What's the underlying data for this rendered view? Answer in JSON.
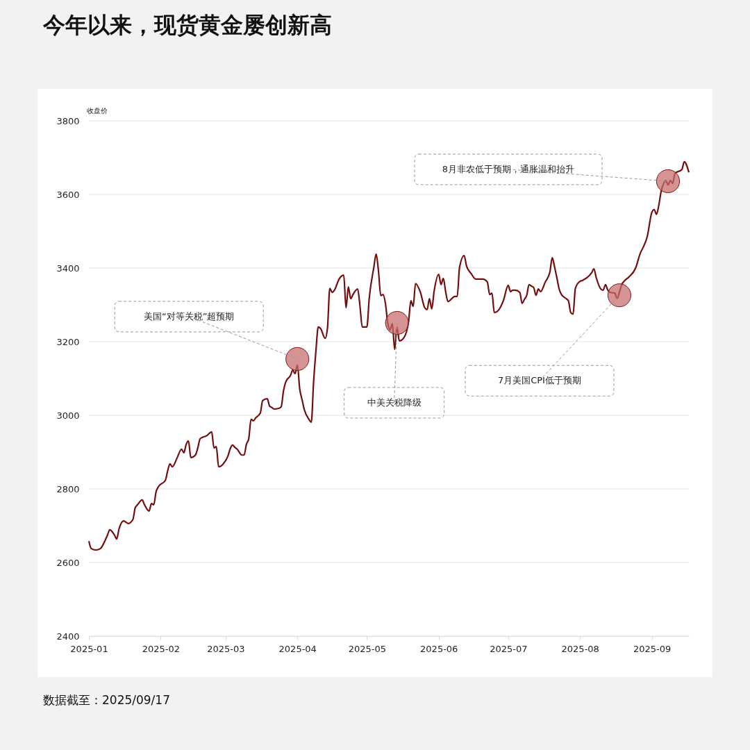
{
  "chart_data": {
    "type": "line",
    "title": "今年以来，现货黄金屡创新高",
    "ylabel": "收盘价",
    "x": [
      "2025-01-01",
      "2025-01-02",
      "2025-01-04",
      "2025-01-06",
      "2025-01-08",
      "2025-01-09",
      "2025-01-10",
      "2025-01-12",
      "2025-01-13",
      "2025-01-14",
      "2025-01-16",
      "2025-01-18",
      "2025-01-20",
      "2025-01-21",
      "2025-01-22",
      "2025-01-24",
      "2025-01-25",
      "2025-01-27",
      "2025-01-28",
      "2025-01-29",
      "2025-01-30",
      "2025-01-31",
      "2025-02-03",
      "2025-02-04",
      "2025-02-05",
      "2025-02-06",
      "2025-02-08",
      "2025-02-10",
      "2025-02-11",
      "2025-02-12",
      "2025-02-13",
      "2025-02-14",
      "2025-02-16",
      "2025-02-17",
      "2025-02-18",
      "2025-02-19",
      "2025-02-21",
      "2025-02-22",
      "2025-02-23",
      "2025-02-24",
      "2025-02-25",
      "2025-02-26",
      "2025-02-28",
      "2025-03-02",
      "2025-03-03",
      "2025-03-04",
      "2025-03-05",
      "2025-03-06",
      "2025-03-08",
      "2025-03-09",
      "2025-03-10",
      "2025-03-11",
      "2025-03-12",
      "2025-03-13",
      "2025-03-14",
      "2025-03-16",
      "2025-03-17",
      "2025-03-19",
      "2025-03-20",
      "2025-03-21",
      "2025-03-22",
      "2025-03-24",
      "2025-03-25",
      "2025-03-26",
      "2025-03-27",
      "2025-03-29",
      "2025-03-30",
      "2025-03-31",
      "2025-04-01",
      "2025-04-02",
      "2025-04-03",
      "2025-04-04",
      "2025-04-06",
      "2025-04-07",
      "2025-04-08",
      "2025-04-09",
      "2025-04-10",
      "2025-04-11",
      "2025-04-13",
      "2025-04-14",
      "2025-04-15",
      "2025-04-16",
      "2025-04-17",
      "2025-04-19",
      "2025-04-21",
      "2025-04-22",
      "2025-04-23",
      "2025-04-24",
      "2025-04-25",
      "2025-04-27",
      "2025-04-28",
      "2025-04-29",
      "2025-05-01",
      "2025-05-02",
      "2025-05-04",
      "2025-05-05",
      "2025-05-06",
      "2025-05-07",
      "2025-05-08",
      "2025-05-09",
      "2025-05-10",
      "2025-05-11",
      "2025-05-12",
      "2025-05-13",
      "2025-05-14",
      "2025-05-15",
      "2025-05-17",
      "2025-05-19",
      "2025-05-20",
      "2025-05-21",
      "2025-05-22",
      "2025-05-24",
      "2025-05-26",
      "2025-05-27",
      "2025-05-28",
      "2025-05-29",
      "2025-05-30",
      "2025-06-01",
      "2025-06-02",
      "2025-06-03",
      "2025-06-04",
      "2025-06-05",
      "2025-06-08",
      "2025-06-09",
      "2025-06-10",
      "2025-06-12",
      "2025-06-13",
      "2025-06-15",
      "2025-06-17",
      "2025-06-18",
      "2025-06-20",
      "2025-06-22",
      "2025-06-23",
      "2025-06-24",
      "2025-06-25",
      "2025-06-27",
      "2025-06-29",
      "2025-07-01",
      "2025-07-02",
      "2025-07-03",
      "2025-07-04",
      "2025-07-06",
      "2025-07-07",
      "2025-07-08",
      "2025-07-09",
      "2025-07-10",
      "2025-07-11",
      "2025-07-12",
      "2025-07-13",
      "2025-07-14",
      "2025-07-15",
      "2025-07-17",
      "2025-07-19",
      "2025-07-20",
      "2025-07-21",
      "2025-07-22",
      "2025-07-23",
      "2025-07-24",
      "2025-07-26",
      "2025-07-27",
      "2025-07-28",
      "2025-07-29",
      "2025-07-30",
      "2025-08-01",
      "2025-08-02",
      "2025-08-03",
      "2025-08-04",
      "2025-08-06",
      "2025-08-07",
      "2025-08-08",
      "2025-08-10",
      "2025-08-11",
      "2025-08-12",
      "2025-08-13",
      "2025-08-14",
      "2025-08-16",
      "2025-08-17",
      "2025-08-18",
      "2025-08-19",
      "2025-08-20",
      "2025-08-22",
      "2025-08-25",
      "2025-08-27",
      "2025-08-28",
      "2025-08-30",
      "2025-09-01",
      "2025-09-02",
      "2025-09-03",
      "2025-09-04",
      "2025-09-05",
      "2025-09-06",
      "2025-09-07",
      "2025-09-08",
      "2025-09-09",
      "2025-09-10",
      "2025-09-11",
      "2025-09-14",
      "2025-09-15",
      "2025-09-17"
    ],
    "series": [
      {
        "color": "#740d0d",
        "values": [
          2658,
          2638,
          2634,
          2638,
          2660,
          2674,
          2689,
          2675,
          2664,
          2691,
          2713,
          2706,
          2717,
          2749,
          2757,
          2770,
          2757,
          2740,
          2760,
          2757,
          2792,
          2806,
          2823,
          2849,
          2868,
          2860,
          2883,
          2908,
          2898,
          2921,
          2930,
          2885,
          2892,
          2911,
          2936,
          2940,
          2945,
          2951,
          2955,
          2911,
          2915,
          2860,
          2868,
          2889,
          2909,
          2919,
          2913,
          2908,
          2892,
          2892,
          2921,
          2936,
          2989,
          2985,
          2993,
          3006,
          3040,
          3045,
          3025,
          3021,
          3017,
          3019,
          3023,
          3066,
          3091,
          3108,
          3123,
          3113,
          3136,
          3072,
          3043,
          3015,
          2989,
          2981,
          3091,
          3175,
          3240,
          3236,
          3209,
          3238,
          3345,
          3334,
          3340,
          3370,
          3381,
          3292,
          3349,
          3317,
          3328,
          3343,
          3298,
          3240,
          3240,
          3317,
          3402,
          3438,
          3392,
          3325,
          3328,
          3304,
          3251,
          3232,
          3249,
          3179,
          3240,
          3202,
          3211,
          3255,
          3311,
          3296,
          3358,
          3336,
          3292,
          3287,
          3317,
          3289,
          3336,
          3383,
          3355,
          3372,
          3336,
          3309,
          3323,
          3323,
          3402,
          3434,
          3406,
          3385,
          3370,
          3370,
          3370,
          3362,
          3328,
          3332,
          3279,
          3287,
          3313,
          3353,
          3336,
          3340,
          3340,
          3334,
          3304,
          3315,
          3326,
          3355,
          3351,
          3347,
          3326,
          3343,
          3336,
          3362,
          3389,
          3428,
          3404,
          3374,
          3343,
          3328,
          3317,
          3311,
          3279,
          3275,
          3345,
          3364,
          3366,
          3370,
          3374,
          3387,
          3398,
          3374,
          3343,
          3340,
          3355,
          3340,
          3334,
          3332,
          3317,
          3334,
          3355,
          3364,
          3375,
          3400,
          3440,
          3453,
          3485,
          3551,
          3559,
          3546,
          3570,
          3608,
          3628,
          3638,
          3626,
          3638,
          3630,
          3657,
          3668,
          3689,
          3660
        ]
      },
      {
        "type": "scatter",
        "color": "#c66a6a",
        "marker": "circle",
        "x": [
          "2025-04-01",
          "2025-05-14",
          "2025-08-18",
          "2025-09-08"
        ],
        "values": [
          3153,
          3251,
          3326,
          3636
        ]
      }
    ],
    "xlim": [
      "2025-01-01",
      "2025-09-17"
    ],
    "xticks": [
      "2025-01",
      "2025-02",
      "2025-03",
      "2025-04",
      "2025-05",
      "2025-06",
      "2025-07",
      "2025-08",
      "2025-09"
    ],
    "ylim": [
      2400,
      3800
    ],
    "yticks": [
      2400,
      2600,
      2800,
      3000,
      3200,
      3400,
      3600,
      3800
    ],
    "grid": "y",
    "marker": "none",
    "line_style": "solid",
    "annotations": [
      {
        "text": "美国“对等关税”超预期",
        "x": "2025-04-01",
        "y": 3153
      },
      {
        "text": "中美关税降级",
        "x": "2025-05-14",
        "y": 3251
      },
      {
        "text": "7月美国CPI低于预期",
        "x": "2025-08-18",
        "y": 3326
      },
      {
        "text": "8月非农低于预期，通胀温和抬升",
        "x": "2025-09-08",
        "y": 3636
      },
      "数据截至：2025/09/17"
    ]
  }
}
